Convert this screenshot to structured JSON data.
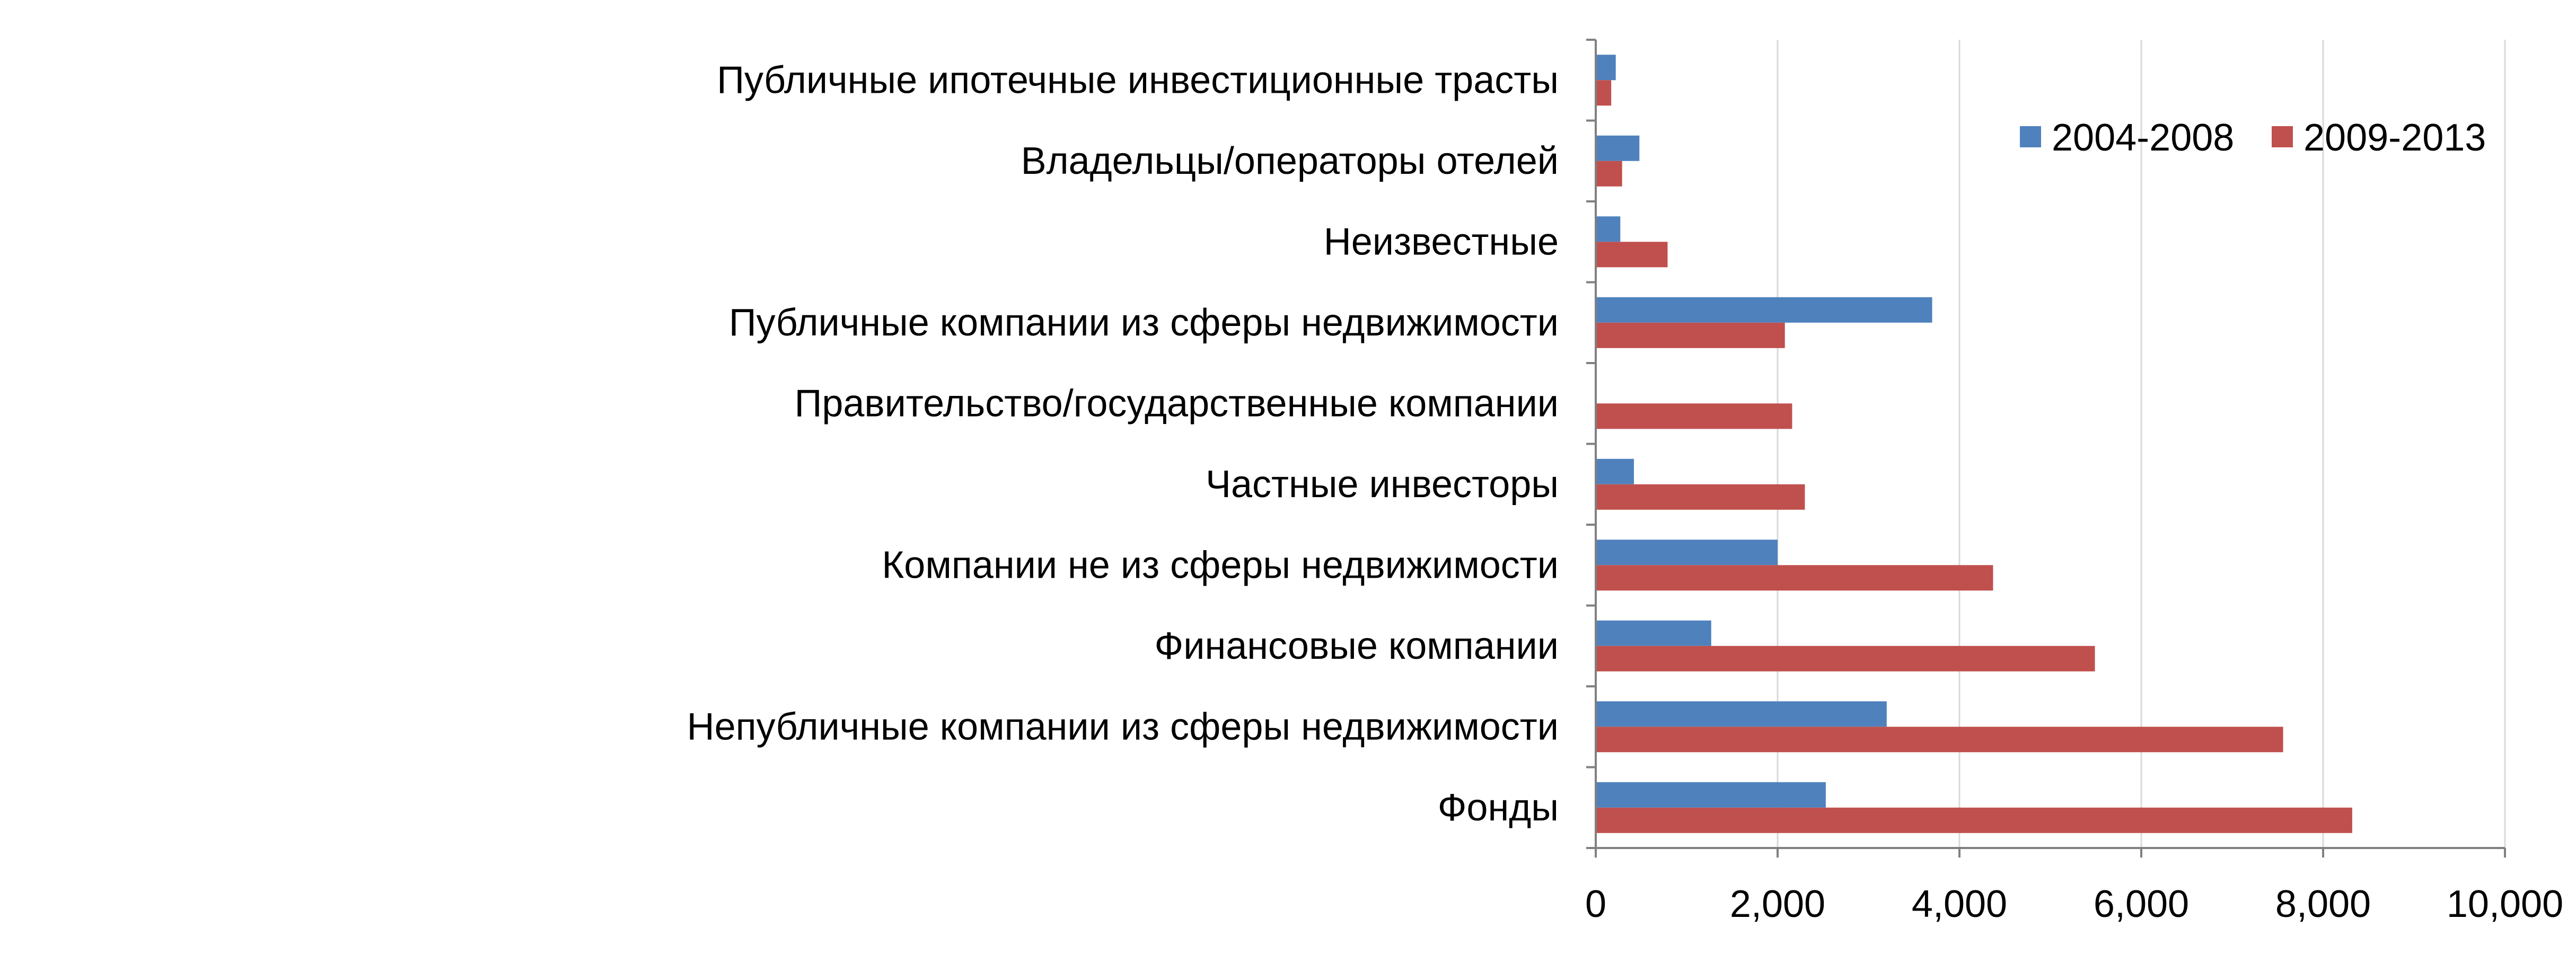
{
  "chart_data": {
    "type": "bar",
    "orientation": "horizontal",
    "title": "",
    "xlabel": "",
    "ylabel": "",
    "categories": [
      "Публичные ипотечные инвестиционные трасты",
      "Владельцы/операторы отелей",
      "Неизвестные",
      "Публичные компании из сферы недвижимости",
      "Правительство/государственные компании",
      "Частные инвесторы",
      "Компании не из сферы недвижимости",
      "Финансовые компании",
      "Непубличные компании из сферы недвижимости",
      "Фонды"
    ],
    "series": [
      {
        "name": "2004-2008",
        "color": "#4f81bd",
        "values": [
          220,
          480,
          270,
          3700,
          0,
          420,
          2000,
          1270,
          3200,
          2530
        ]
      },
      {
        "name": "2009-2013",
        "color": "#c0504d",
        "values": [
          170,
          290,
          790,
          2080,
          2160,
          2300,
          4370,
          5490,
          7560,
          8320
        ]
      }
    ],
    "xlim": [
      0,
      10000
    ],
    "xticks": [
      0,
      2000,
      4000,
      6000,
      8000,
      10000
    ],
    "xtick_labels": [
      "0",
      "2,000",
      "4,000",
      "6,000",
      "8,000",
      "10,000"
    ],
    "grid": "vertical",
    "legend": "top-right"
  }
}
